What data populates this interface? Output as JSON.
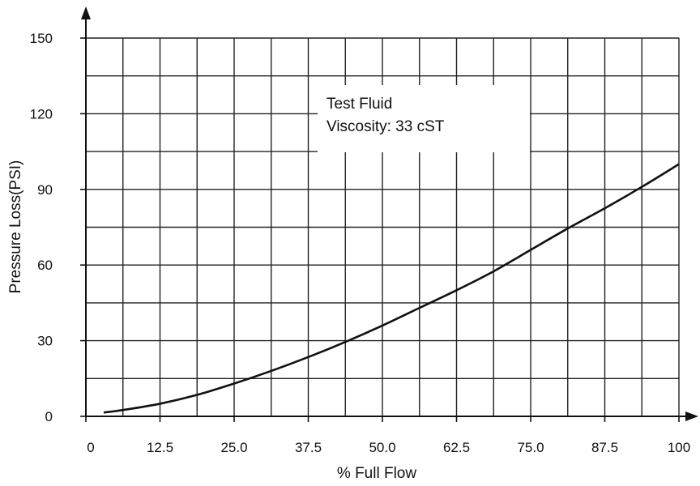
{
  "chart_data": {
    "type": "line",
    "xlabel": "% Full Flow",
    "ylabel": "Pressure Loss(PSI)",
    "x_ticks": [
      "0",
      "12.5",
      "25.0",
      "37.5",
      "50.0",
      "62.5",
      "75.0",
      "87.5",
      "100"
    ],
    "y_ticks": [
      "0",
      "30",
      "60",
      "90",
      "120",
      "150"
    ],
    "xlim": [
      0,
      100
    ],
    "ylim": [
      0,
      150
    ],
    "grid": true,
    "annotation": [
      "Test Fluid",
      "Viscosity: 33 cST"
    ],
    "series": [
      {
        "x": [
          3,
          6.25,
          12.5,
          18.75,
          25,
          31.25,
          37.5,
          43.75,
          50,
          56.25,
          62.5,
          68.75,
          75,
          81.25,
          87.5,
          93.75,
          100
        ],
        "y": [
          1.5,
          2.5,
          5,
          8.5,
          13,
          18,
          23.5,
          29.5,
          36,
          43,
          50,
          57.5,
          66,
          74.5,
          82.5,
          91,
          100
        ]
      }
    ]
  }
}
